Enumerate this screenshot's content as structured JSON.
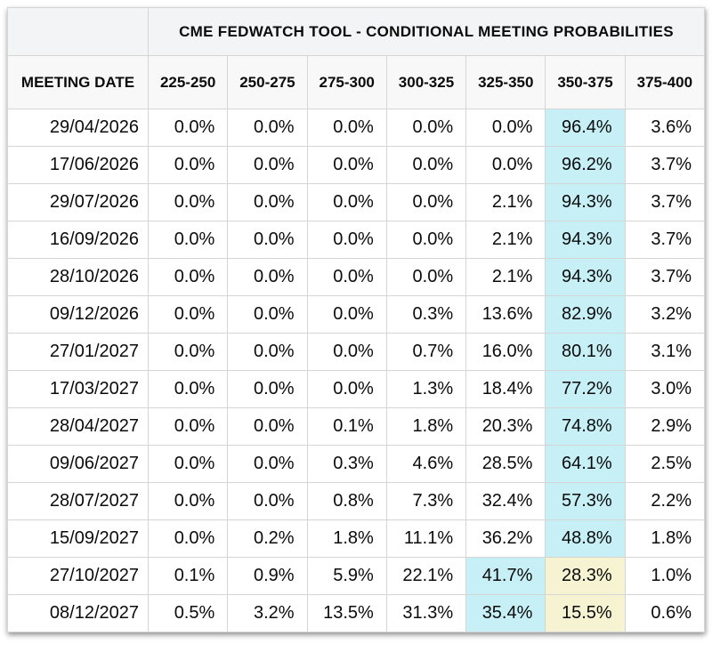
{
  "chart_data": {
    "type": "table",
    "title": "CME FEDWATCH TOOL - CONDITIONAL MEETING PROBABILITIES",
    "columns": [
      "MEETING DATE",
      "225-250",
      "250-275",
      "275-300",
      "300-325",
      "325-350",
      "350-375",
      "375-400"
    ],
    "units": "percent",
    "rows": [
      {
        "date": "29/04/2026",
        "values": [
          0.0,
          0.0,
          0.0,
          0.0,
          0.0,
          96.4,
          3.6
        ],
        "cyan": 5,
        "yellow": null
      },
      {
        "date": "17/06/2026",
        "values": [
          0.0,
          0.0,
          0.0,
          0.0,
          0.0,
          96.2,
          3.7
        ],
        "cyan": 5,
        "yellow": null
      },
      {
        "date": "29/07/2026",
        "values": [
          0.0,
          0.0,
          0.0,
          0.0,
          2.1,
          94.3,
          3.7
        ],
        "cyan": 5,
        "yellow": null
      },
      {
        "date": "16/09/2026",
        "values": [
          0.0,
          0.0,
          0.0,
          0.0,
          2.1,
          94.3,
          3.7
        ],
        "cyan": 5,
        "yellow": null
      },
      {
        "date": "28/10/2026",
        "values": [
          0.0,
          0.0,
          0.0,
          0.0,
          2.1,
          94.3,
          3.7
        ],
        "cyan": 5,
        "yellow": null
      },
      {
        "date": "09/12/2026",
        "values": [
          0.0,
          0.0,
          0.0,
          0.3,
          13.6,
          82.9,
          3.2
        ],
        "cyan": 5,
        "yellow": null
      },
      {
        "date": "27/01/2027",
        "values": [
          0.0,
          0.0,
          0.0,
          0.7,
          16.0,
          80.1,
          3.1
        ],
        "cyan": 5,
        "yellow": null
      },
      {
        "date": "17/03/2027",
        "values": [
          0.0,
          0.0,
          0.0,
          1.3,
          18.4,
          77.2,
          3.0
        ],
        "cyan": 5,
        "yellow": null
      },
      {
        "date": "28/04/2027",
        "values": [
          0.0,
          0.0,
          0.1,
          1.8,
          20.3,
          74.8,
          2.9
        ],
        "cyan": 5,
        "yellow": null
      },
      {
        "date": "09/06/2027",
        "values": [
          0.0,
          0.0,
          0.3,
          4.6,
          28.5,
          64.1,
          2.5
        ],
        "cyan": 5,
        "yellow": null
      },
      {
        "date": "28/07/2027",
        "values": [
          0.0,
          0.0,
          0.8,
          7.3,
          32.4,
          57.3,
          2.2
        ],
        "cyan": 5,
        "yellow": null
      },
      {
        "date": "15/09/2027",
        "values": [
          0.0,
          0.2,
          1.8,
          11.1,
          36.2,
          48.8,
          1.8
        ],
        "cyan": 5,
        "yellow": null
      },
      {
        "date": "27/10/2027",
        "values": [
          0.1,
          0.9,
          5.9,
          22.1,
          41.7,
          28.3,
          1.0
        ],
        "cyan": 4,
        "yellow": 5
      },
      {
        "date": "08/12/2027",
        "values": [
          0.5,
          3.2,
          13.5,
          31.3,
          35.4,
          15.5,
          0.6
        ],
        "cyan": 4,
        "yellow": 5
      }
    ],
    "layout_hints": {
      "value_format": "one decimal place with % suffix",
      "cyan_highlight_hex": "#c6f0f6",
      "yellow_highlight_hex": "#f6f3d2",
      "header_bg_hex": "#f3f4f5",
      "grid": "on"
    }
  }
}
